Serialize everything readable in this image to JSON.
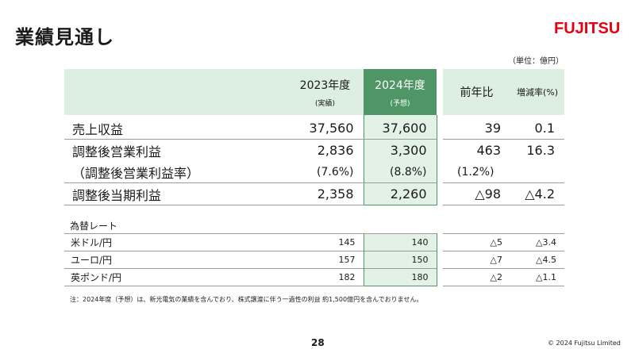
{
  "header": {
    "title": "業績見通し",
    "logo": "FUJITSU"
  },
  "unit": "（単位：億円）",
  "main_table": {
    "columns": [
      {
        "year": "2023年度",
        "sub": "(実績)"
      },
      {
        "year": "2024年度",
        "sub": "(予想)"
      },
      {
        "year": "前年比",
        "sub": ""
      },
      {
        "year": "増減率(%)",
        "sub": ""
      }
    ],
    "rows": [
      {
        "label": "売上収益",
        "v2023": "37,560",
        "v2024": "37,600",
        "yoy": "39",
        "rate": "0.1"
      },
      {
        "label": "調整後営業利益",
        "v2023": "2,836",
        "v2024": "3,300",
        "yoy": "463",
        "rate": "16.3"
      },
      {
        "label": "（調整後営業利益率）",
        "v2023": "(7.6%)",
        "v2024": "(8.8%)",
        "yoy": "(1.2%)",
        "rate": ""
      },
      {
        "label": "調整後当期利益",
        "v2023": "2,358",
        "v2024": "2,260",
        "yoy": "△98",
        "rate": "△4.2"
      }
    ]
  },
  "fx_table": {
    "label": "為替レート",
    "rows": [
      {
        "label": "米ドル/円",
        "v2023": "145",
        "v2024": "140",
        "yoy": "△5",
        "rate": "△3.4"
      },
      {
        "label": "ユーロ/円",
        "v2023": "157",
        "v2024": "150",
        "yoy": "△7",
        "rate": "△4.5"
      },
      {
        "label": "英ポンド/円",
        "v2023": "182",
        "v2024": "180",
        "yoy": "△2",
        "rate": "△1.1"
      }
    ]
  },
  "note": "注：2024年度（予想）は、新光電気の業績を含んでおり、株式譲渡に伴う一過性の利益 約1,500億円を含んでおりません。",
  "footer": {
    "page": "28",
    "copyright": "© 2024 Fujitsu Limited"
  }
}
